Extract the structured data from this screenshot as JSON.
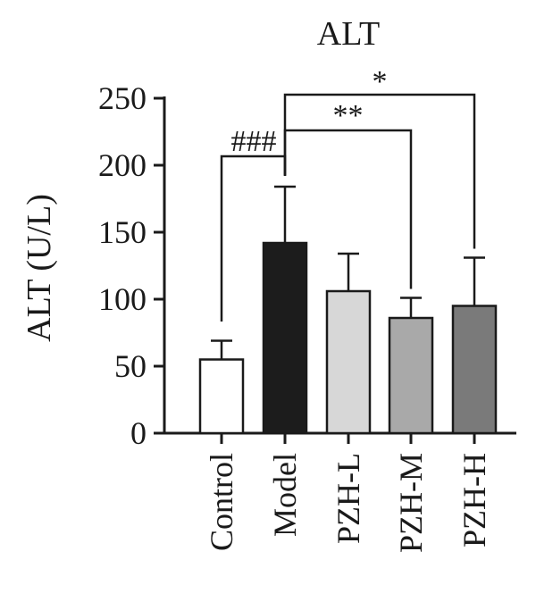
{
  "chart_data": {
    "type": "bar",
    "title": "ALT",
    "ylabel": "ALT (U/L)",
    "xlabel": "",
    "ylim": [
      0,
      250
    ],
    "yticks": [
      0,
      50,
      100,
      150,
      200,
      250
    ],
    "grid": false,
    "categories": [
      "Control",
      "Model",
      "PZH-L",
      "PZH-M",
      "PZH-H"
    ],
    "values": [
      55,
      142,
      106,
      86,
      95
    ],
    "errors": [
      14,
      42,
      28,
      15,
      36
    ],
    "bar_colors": [
      "#ffffff",
      "#1c1c1c",
      "#d7d7d7",
      "#a9a9a9",
      "#7a7a7a"
    ],
    "significance": [
      {
        "from": "Control",
        "to": "Model",
        "label": "###"
      },
      {
        "from": "Model",
        "to": "PZH-M",
        "label": "**"
      },
      {
        "from": "Model",
        "to": "PZH-H",
        "label": "*"
      }
    ]
  }
}
